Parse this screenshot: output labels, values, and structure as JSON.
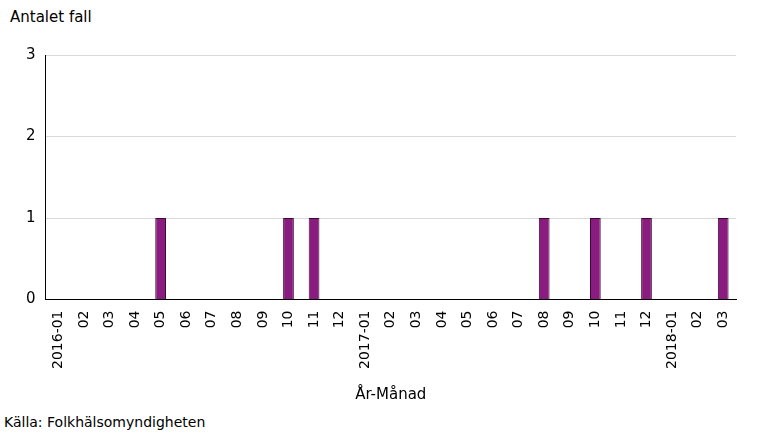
{
  "chart_data": {
    "type": "bar",
    "y_label": "Antalet fall",
    "x_label": "År-Månad",
    "annotations": [
      "Källa: Folkhälsomyndigheten"
    ],
    "categories": [
      "2016-01",
      "02",
      "03",
      "04",
      "05",
      "06",
      "07",
      "08",
      "09",
      "10",
      "11",
      "12",
      "2017-01",
      "02",
      "03",
      "04",
      "05",
      "06",
      "07",
      "08",
      "09",
      "10",
      "11",
      "12",
      "2018-01",
      "02",
      "03"
    ],
    "values": [
      0,
      0,
      0,
      0,
      1,
      0,
      0,
      0,
      0,
      1,
      1,
      0,
      0,
      0,
      0,
      0,
      0,
      0,
      0,
      1,
      0,
      1,
      0,
      1,
      0,
      0,
      1
    ],
    "color": "#8b1c7f",
    "ylim": [
      0,
      3
    ],
    "yticks": [
      0,
      1,
      2,
      3
    ],
    "grid": true
  }
}
